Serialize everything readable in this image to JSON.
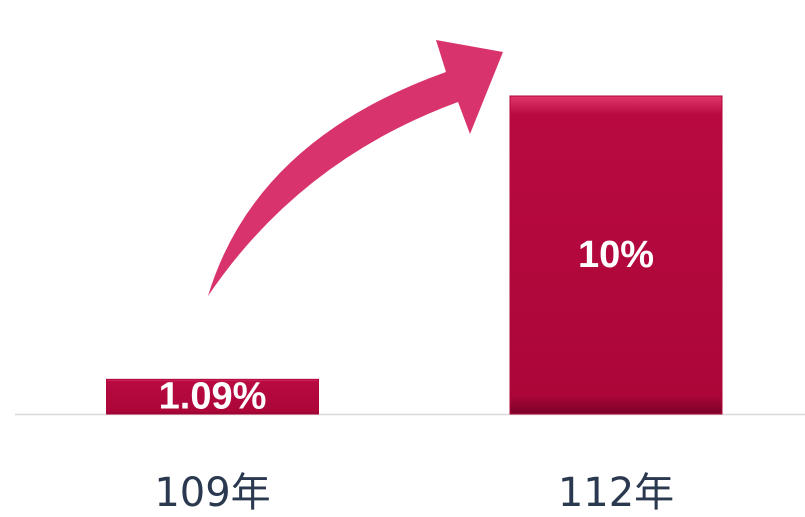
{
  "chart_data": {
    "type": "bar",
    "categories": [
      "109年",
      "112年"
    ],
    "values": [
      1.09,
      10
    ],
    "value_labels": [
      "1.09%",
      "10%"
    ],
    "color": "#b0073b"
  }
}
